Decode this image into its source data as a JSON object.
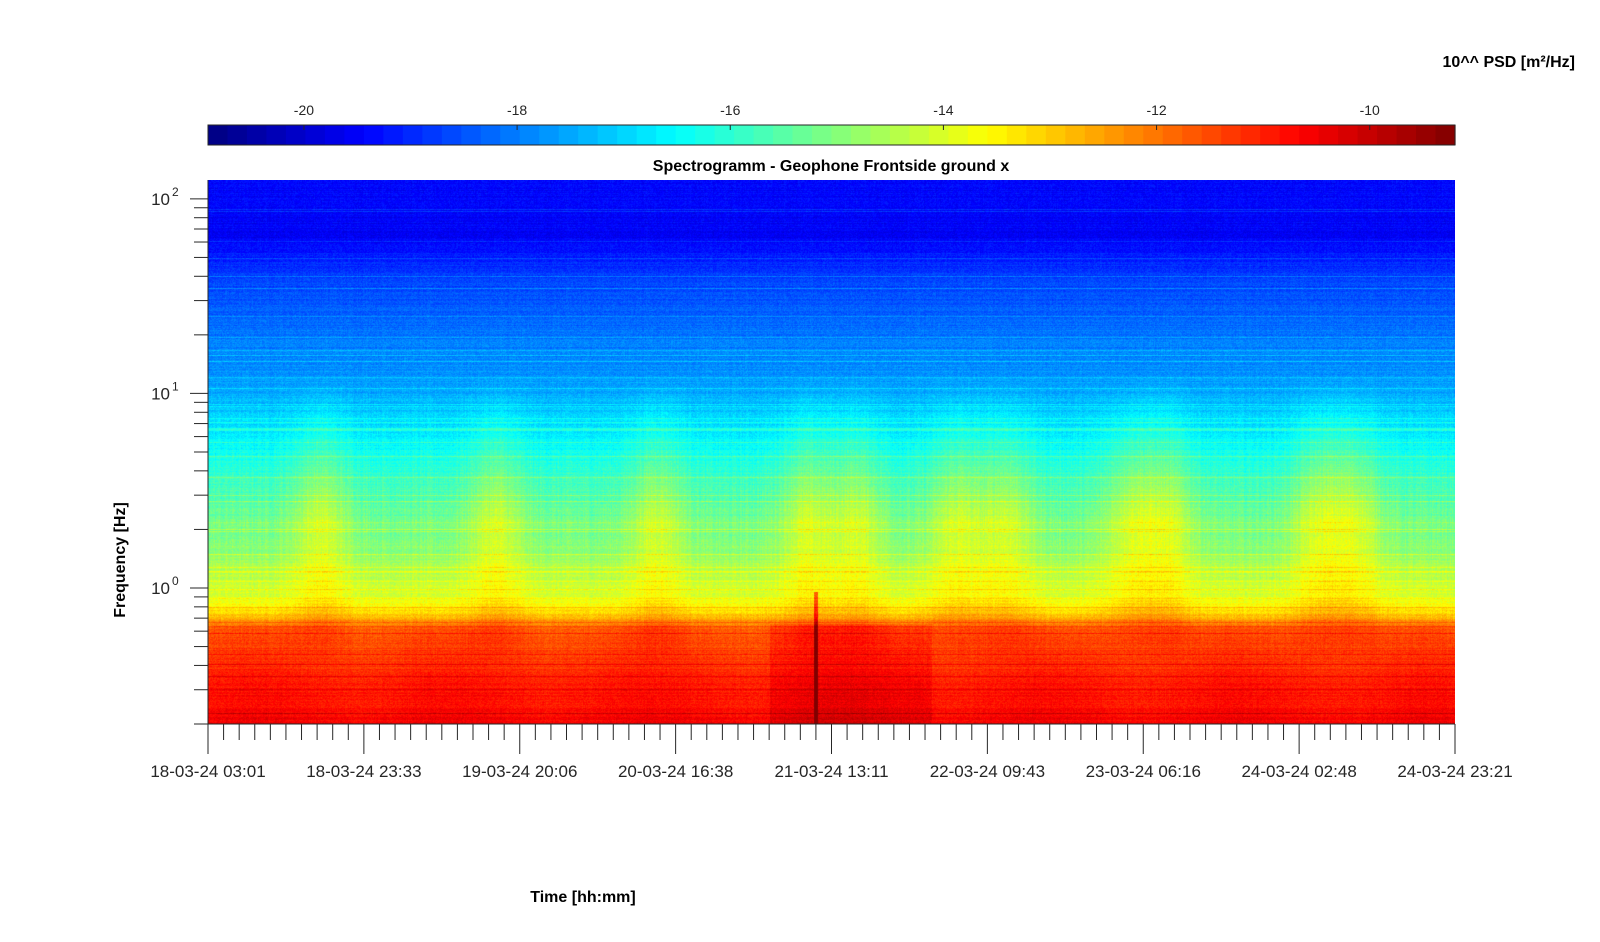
{
  "chart_data": {
    "type": "heatmap",
    "title": "Spectrogramm - Geophone Frontside ground x",
    "xlabel": "Time [hh:mm]",
    "ylabel": "Frequency [Hz]",
    "y_scale": "log",
    "ylim": [
      0.2,
      125
    ],
    "y_ticks": [
      {
        "value": 1,
        "base": "10",
        "exp": "0"
      },
      {
        "value": 10,
        "base": "10",
        "exp": "1"
      },
      {
        "value": 100,
        "base": "10",
        "exp": "2"
      }
    ],
    "x_ticks": [
      "18-03-24 03:01",
      "18-03-24 23:33",
      "19-03-24 20:06",
      "20-03-24 16:38",
      "21-03-24 13:11",
      "22-03-24 09:43",
      "23-03-24 06:16",
      "24-03-24 02:48",
      "24-03-24 23:21"
    ],
    "colorbar": {
      "label": "10^^ PSD [m²/Hz]",
      "colormap": "jet",
      "clim": [
        -20.9,
        -9.2
      ],
      "ticks": [
        "-20",
        "-18",
        "-16",
        "-14",
        "-12",
        "-10"
      ],
      "tick_values": [
        -20,
        -18,
        -16,
        -14,
        -12,
        -10
      ]
    },
    "spectral_profile": {
      "description_units": "log10 PSD by log10 frequency",
      "log10_freq": [
        -0.7,
        -0.5,
        -0.3,
        -0.2,
        -0.12,
        -0.05,
        0.05,
        0.2,
        0.4,
        0.6,
        0.8,
        1.0,
        1.3,
        1.6,
        1.8,
        2.1
      ],
      "log10_psd": [
        -10.6,
        -10.9,
        -11.4,
        -11.8,
        -13.2,
        -14.0,
        -14.3,
        -14.9,
        -15.4,
        -16.0,
        -16.7,
        -17.5,
        -18.1,
        -18.7,
        -19.5,
        -19.4
      ]
    },
    "daily_activity_peaks_time_index": [
      0.09,
      0.23,
      0.36,
      0.48,
      0.52,
      0.6,
      0.64,
      0.74,
      0.77,
      0.89,
      0.92
    ],
    "transient_event_time_index": 0.487
  }
}
